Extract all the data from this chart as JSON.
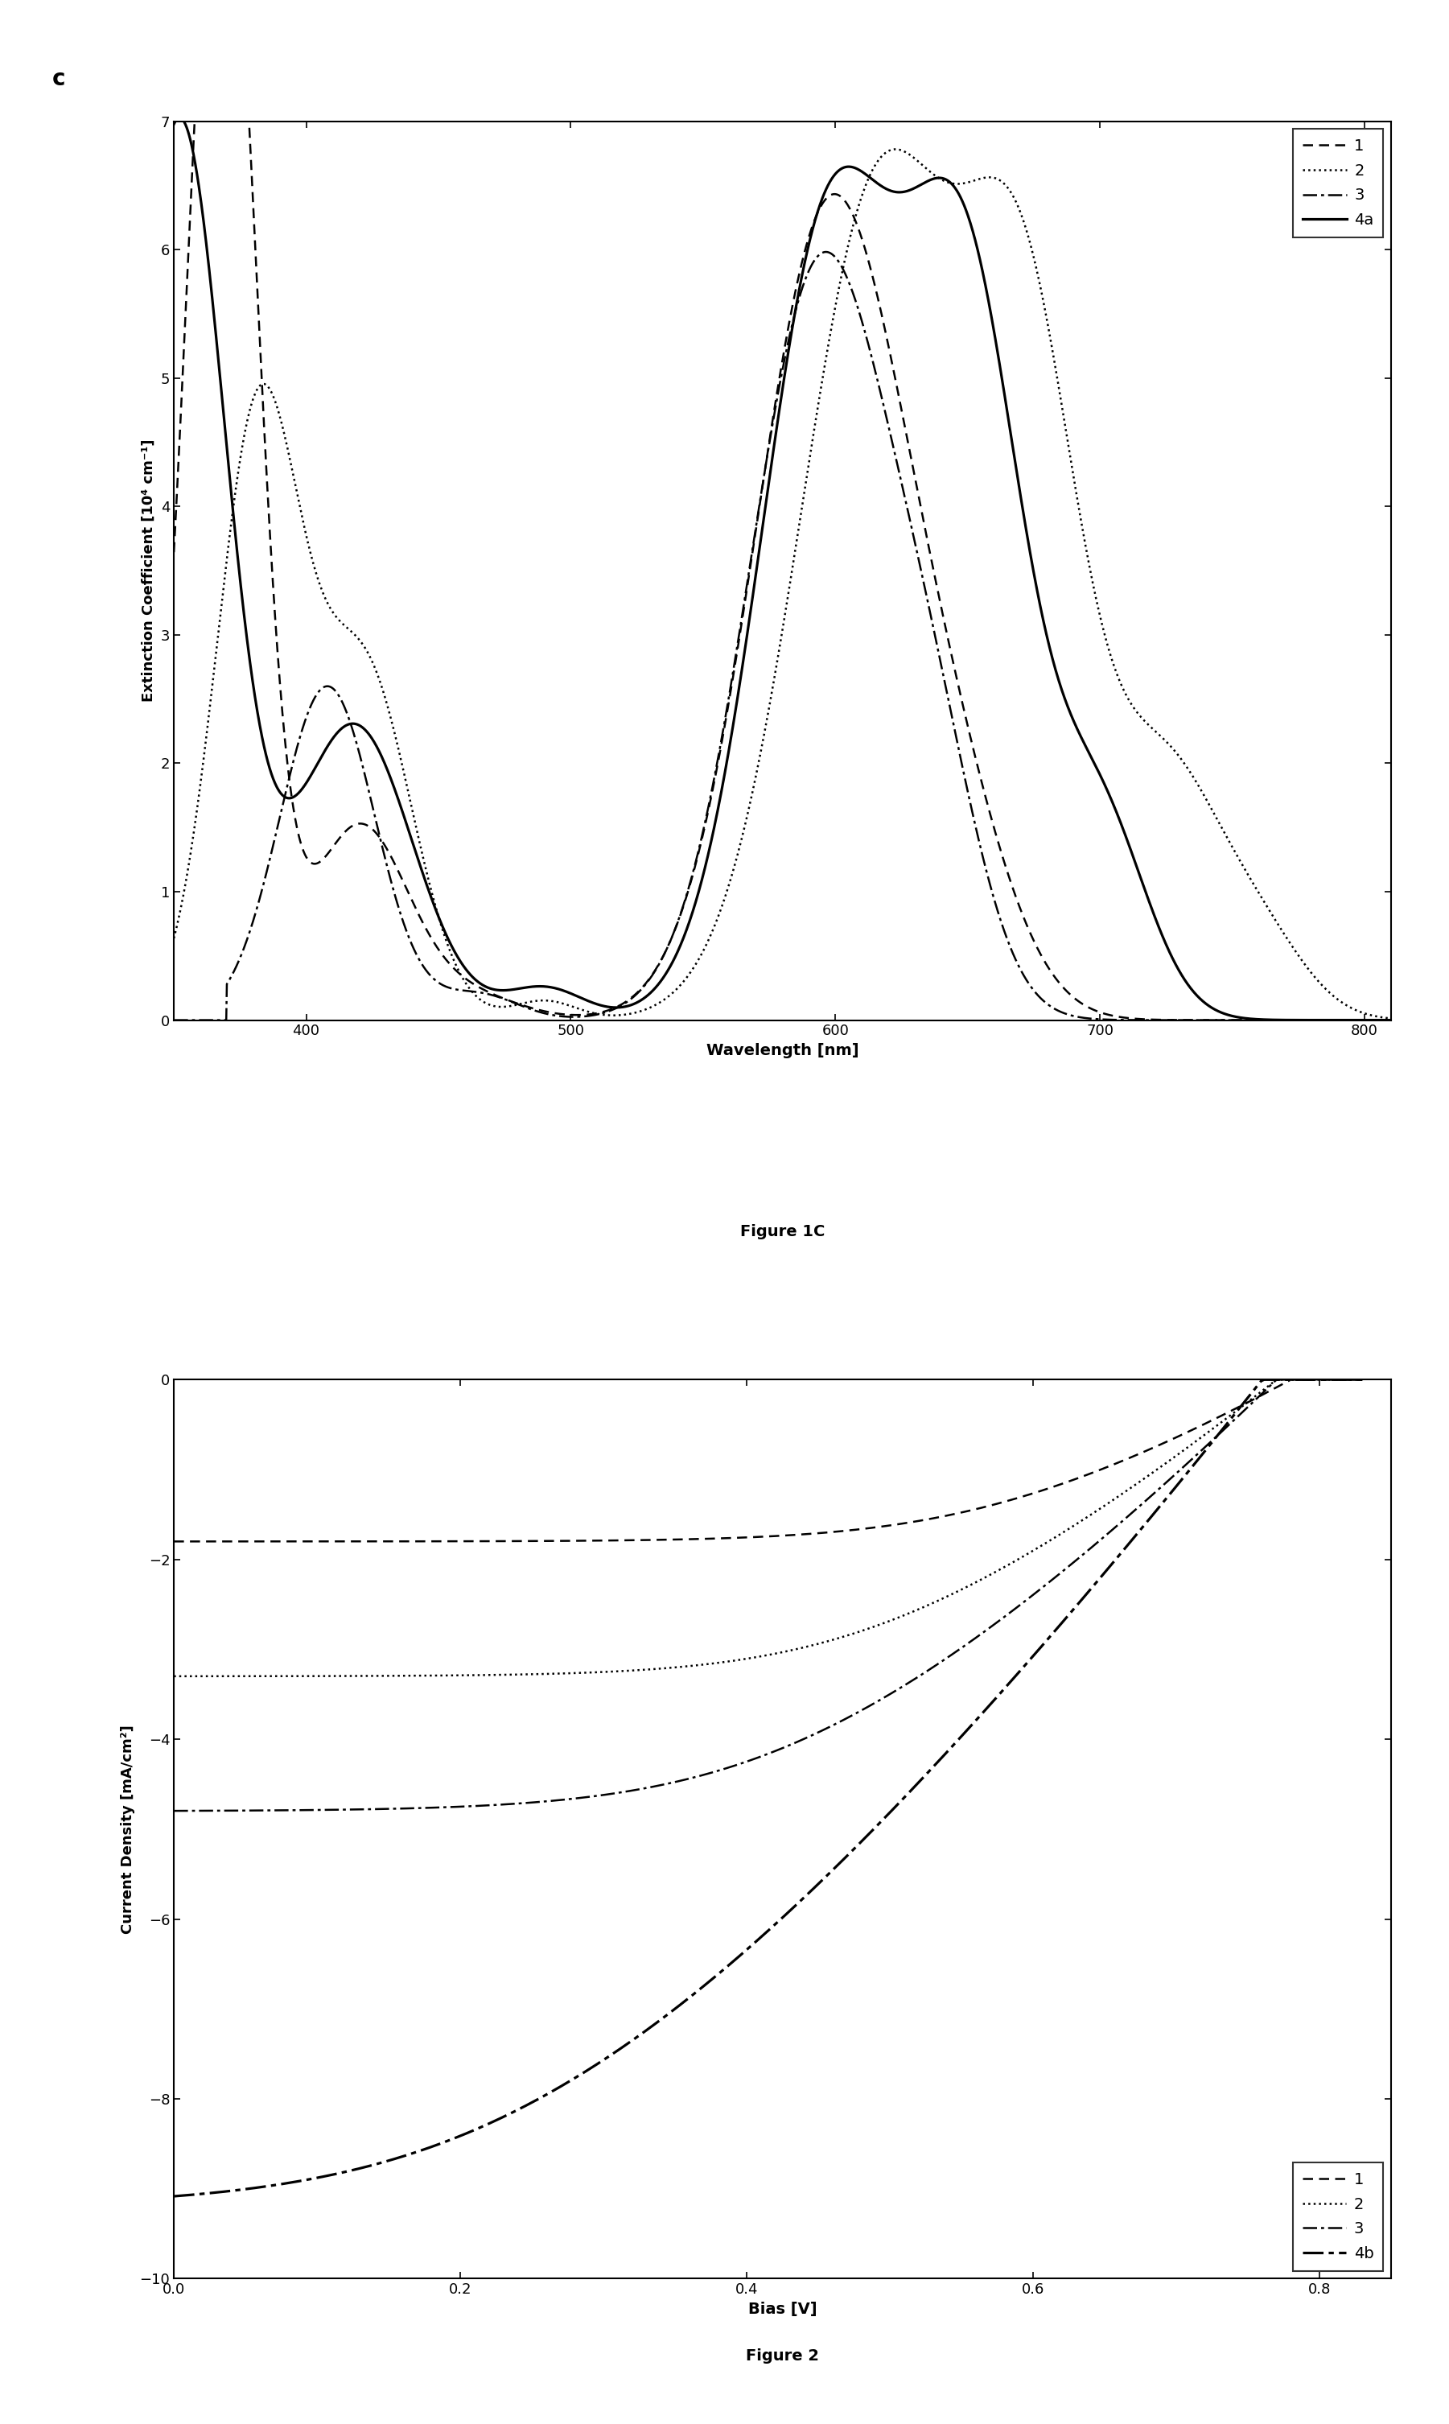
{
  "fig1c": {
    "panel_label": "c",
    "xlabel": "Wavelength [nm]",
    "ylabel": "Extinction Coefficient [10⁴ cm⁻¹]",
    "caption": "Figure 1C",
    "xlim": [
      350,
      810
    ],
    "ylim": [
      0,
      7
    ],
    "yticks": [
      0,
      1,
      2,
      3,
      4,
      5,
      6,
      7
    ],
    "xticks": [
      400,
      500,
      600,
      700,
      800
    ],
    "legend": [
      "1",
      "2",
      "3",
      "4a"
    ]
  },
  "fig2": {
    "xlabel": "Bias [V]",
    "ylabel": "Current Density [mA/cm²]",
    "caption": "Figure 2",
    "xlim": [
      0,
      0.85
    ],
    "ylim": [
      -10,
      0
    ],
    "yticks": [
      0,
      -2,
      -4,
      -6,
      -8,
      -10
    ],
    "xticks": [
      0,
      0.2,
      0.4,
      0.6,
      0.8
    ],
    "legend": [
      "1",
      "2",
      "3",
      "4b"
    ]
  },
  "background_color": "#ffffff",
  "line_color": "#000000"
}
